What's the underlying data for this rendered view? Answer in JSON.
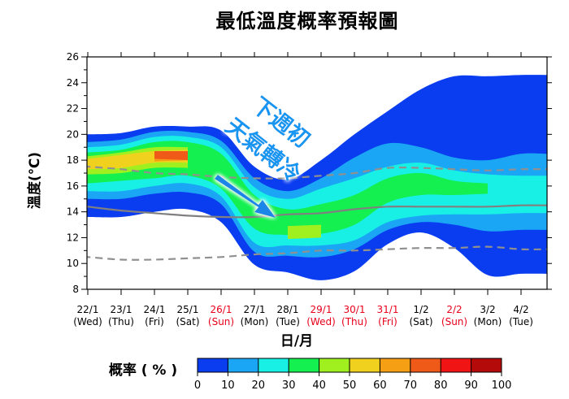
{
  "chart_data": {
    "type": "heatmap",
    "title": "最低溫度概率預報圖",
    "xlabel": "日/月",
    "ylabel": "溫度(℃)",
    "ylim": [
      8,
      26
    ],
    "yticks": [
      8,
      10,
      12,
      14,
      16,
      18,
      20,
      22,
      24,
      26
    ],
    "grid": false,
    "categories": [
      {
        "date": "22/1",
        "day": "(Wed)",
        "color": "#000000"
      },
      {
        "date": "23/1",
        "day": "(Thu)",
        "color": "#000000"
      },
      {
        "date": "24/1",
        "day": "(Fri)",
        "color": "#000000"
      },
      {
        "date": "25/1",
        "day": "(Sat)",
        "color": "#000000"
      },
      {
        "date": "26/1",
        "day": "(Sun)",
        "color": "#e8001c"
      },
      {
        "date": "27/1",
        "day": "(Mon)",
        "color": "#000000"
      },
      {
        "date": "28/1",
        "day": "(Tue)",
        "color": "#000000"
      },
      {
        "date": "29/1",
        "day": "(Wed)",
        "color": "#e8001c"
      },
      {
        "date": "30/1",
        "day": "(Thu)",
        "color": "#e8001c"
      },
      {
        "date": "31/1",
        "day": "(Fri)",
        "color": "#e8001c"
      },
      {
        "date": "1/2",
        "day": "(Sat)",
        "color": "#000000"
      },
      {
        "date": "2/2",
        "day": "(Sun)",
        "color": "#e8001c"
      },
      {
        "date": "3/2",
        "day": "(Mon)",
        "color": "#000000"
      },
      {
        "date": "4/2",
        "day": "(Tue)",
        "color": "#000000"
      }
    ],
    "probability_bands": [
      {
        "level": 10,
        "color": "#0a3cf0",
        "upper": [
          20.0,
          20.1,
          20.6,
          20.6,
          20.3,
          17.5,
          16.5,
          18.0,
          20.0,
          21.8,
          23.5,
          24.5,
          24.5,
          24.6
        ],
        "lower": [
          13.6,
          13.6,
          14.0,
          14.2,
          13.2,
          9.9,
          9.3,
          8.7,
          9.4,
          11.5,
          12.4,
          11.2,
          9.1,
          9.2
        ]
      },
      {
        "level": 20,
        "color": "#1aa6f5",
        "upper": [
          19.4,
          19.6,
          20.2,
          20.2,
          19.5,
          16.6,
          15.6,
          16.6,
          18.2,
          19.3,
          19.0,
          18.2,
          18.0,
          18.5
        ],
        "lower": [
          15.0,
          15.0,
          15.4,
          15.5,
          14.6,
          10.9,
          10.6,
          10.5,
          11.1,
          12.6,
          13.2,
          13.0,
          12.5,
          12.6
        ]
      },
      {
        "level": 30,
        "color": "#18f0e6",
        "upper": [
          19.0,
          19.2,
          19.8,
          19.8,
          19.0,
          15.9,
          15.0,
          15.8,
          16.6,
          17.5,
          17.8,
          17.2,
          16.9,
          16.8
        ],
        "lower": [
          15.6,
          15.6,
          16.0,
          16.2,
          15.2,
          11.6,
          11.4,
          11.4,
          11.8,
          13.2,
          13.7,
          13.8,
          13.8,
          13.9
        ]
      },
      {
        "level": 40,
        "color": "#14f050",
        "upper": [
          18.6,
          18.8,
          19.4,
          19.4,
          18.5,
          15.3,
          14.2,
          14.6,
          15.3,
          16.6,
          17.0,
          16.4,
          16.2,
          null
        ],
        "lower": [
          16.2,
          16.4,
          16.6,
          16.8,
          15.8,
          12.7,
          12.2,
          12.3,
          13.0,
          14.7,
          15.3,
          15.3,
          15.4,
          null
        ]
      },
      {
        "level": 50,
        "color": "#a0f020",
        "upper": [
          18.3,
          18.6,
          19.0,
          19.0,
          null,
          null,
          12.9,
          13.0,
          null,
          null,
          null,
          null,
          null,
          null
        ],
        "lower": [
          16.9,
          17.0,
          17.4,
          17.4,
          null,
          null,
          11.9,
          12.0,
          null,
          null,
          null,
          null,
          null,
          null
        ]
      },
      {
        "level": 60,
        "color": "#f0d21e",
        "upper": [
          18.1,
          18.4,
          18.7,
          18.8,
          null,
          null,
          null,
          null,
          null,
          null,
          null,
          null,
          null,
          null
        ],
        "lower": [
          17.3,
          17.4,
          17.8,
          17.8,
          null,
          null,
          null,
          null,
          null,
          null,
          null,
          null,
          null,
          null
        ]
      },
      {
        "level": 70,
        "color": "#f5a014",
        "upper": [
          null,
          null,
          18.5,
          18.7,
          null,
          null,
          null,
          null,
          null,
          null,
          null,
          null,
          null,
          null
        ],
        "lower": [
          null,
          null,
          17.9,
          18.0,
          null,
          null,
          null,
          null,
          null,
          null,
          null,
          null,
          null,
          null
        ]
      },
      {
        "level": 80,
        "color": "#f05a19",
        "upper": [
          null,
          null,
          18.7,
          18.7,
          null,
          null,
          null,
          null,
          null,
          null,
          null,
          null,
          null,
          null
        ],
        "lower": [
          null,
          null,
          18.1,
          18.0,
          null,
          null,
          null,
          null,
          null,
          null,
          null,
          null,
          null,
          null
        ]
      }
    ],
    "reference_lines": [
      {
        "style": "dashed",
        "color": "#909090",
        "values": [
          17.5,
          17.3,
          17.0,
          16.9,
          16.7,
          16.6,
          16.6,
          16.8,
          17.0,
          17.4,
          17.4,
          17.3,
          17.2,
          17.3
        ]
      },
      {
        "style": "solid",
        "color": "#808080",
        "values": [
          14.4,
          14.1,
          13.9,
          13.7,
          13.6,
          13.6,
          13.8,
          13.9,
          14.2,
          14.4,
          14.4,
          14.4,
          14.4,
          14.5
        ]
      },
      {
        "style": "dashed",
        "color": "#909090",
        "values": [
          10.5,
          10.3,
          10.3,
          10.4,
          10.5,
          10.7,
          10.8,
          11.0,
          11.0,
          11.1,
          11.2,
          11.2,
          11.3,
          11.1
        ]
      }
    ],
    "annotation_lines": [
      "下週初",
      "天氣轉冷"
    ],
    "colorbar": {
      "label": "概率 ( % )",
      "ticks": [
        0,
        10,
        20,
        30,
        40,
        50,
        60,
        70,
        80,
        90,
        100
      ],
      "colors": [
        "#0a3cf0",
        "#1aa6f5",
        "#18f0e6",
        "#14f050",
        "#a0f020",
        "#f0d21e",
        "#f5a014",
        "#f05a19",
        "#f01414",
        "#b40a0a"
      ]
    }
  }
}
